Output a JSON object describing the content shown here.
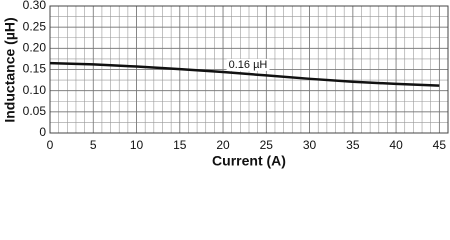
{
  "chart_data": {
    "type": "line",
    "x_label": "Current (A)",
    "y_label": "Inductance (µH)",
    "annotation": "0.16 µH",
    "x": [
      0,
      5,
      10,
      15,
      20,
      25,
      30,
      35,
      40,
      45
    ],
    "series": [
      {
        "color": "#111111",
        "values": [
          0.165,
          0.162,
          0.157,
          0.151,
          0.144,
          0.136,
          0.128,
          0.121,
          0.116,
          0.112
        ]
      }
    ],
    "xlim": [
      0,
      46
    ],
    "ylim": [
      0,
      0.3
    ],
    "xticks": [
      0,
      5,
      10,
      15,
      20,
      25,
      30,
      35,
      40,
      45
    ],
    "yticks": [
      0,
      0.05,
      {
        "value": 0.1,
        "label": "0.10"
      },
      0.15,
      {
        "value": 0.2,
        "label": "0.20"
      },
      0.25,
      {
        "value": 0.3,
        "label": "0.30"
      }
    ],
    "grid": true
  }
}
